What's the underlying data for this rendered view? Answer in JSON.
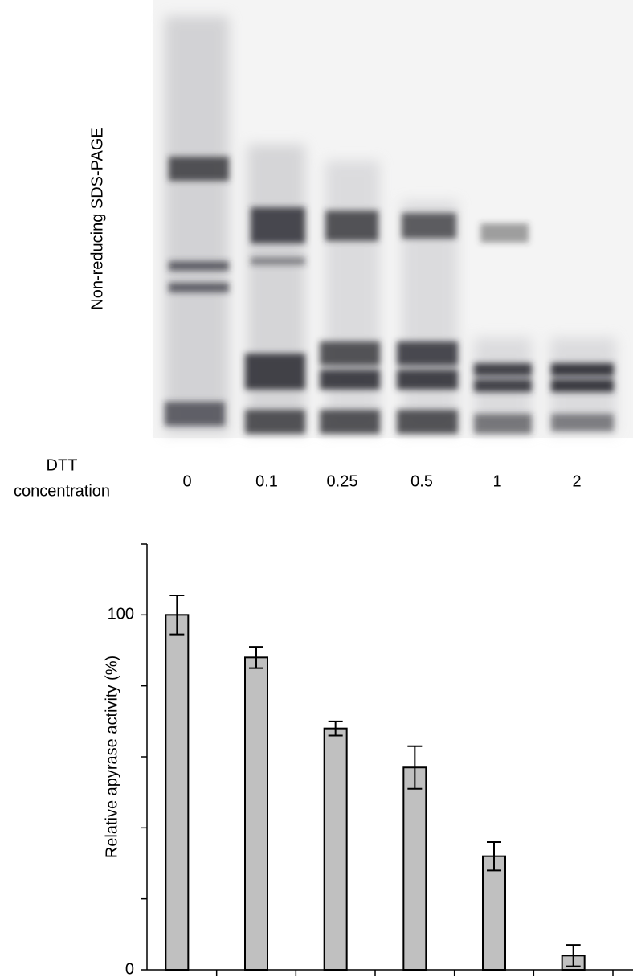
{
  "gel": {
    "ylabel": "Non-reducing SDS-PAGE",
    "xlabel": [
      "DTT",
      "concentration"
    ]
  },
  "chart_data": {
    "type": "bar",
    "ylabel": "Relative apyrase activity (%)",
    "categories": [
      "0",
      "0.1",
      "0.25",
      "0.5",
      "1",
      "2"
    ],
    "values": [
      100,
      88,
      68,
      57,
      32,
      4
    ],
    "errors": [
      5.5,
      3,
      2,
      6,
      4,
      3
    ],
    "color": "#c0c0c0",
    "ylim": [
      0,
      120
    ],
    "yticks": [
      0,
      {
        "value": 20,
        "label": null
      },
      {
        "value": 40,
        "label": null
      },
      {
        "value": 60,
        "label": null
      },
      {
        "value": 80,
        "label": null
      },
      100,
      {
        "value": 120,
        "label": null
      }
    ]
  }
}
